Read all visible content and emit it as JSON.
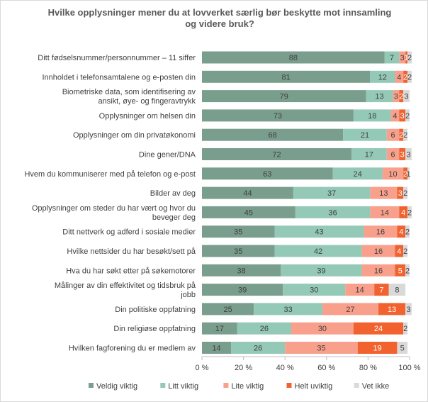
{
  "chart_data": {
    "type": "bar",
    "orientation": "horizontal",
    "stacked": true,
    "title": "Hvilke opplysninger mener du at lovverket særlig bør beskytte mot innsamling og videre bruk?",
    "categories": [
      "Ditt fødselsnummer/personnummer – 11 siffer",
      "Innholdet i telefonsamtalene og e-posten din",
      "Biometriske data, som identifisering av ansikt, øye- og fingeravtrykk",
      "Opplysninger om helsen din",
      "Opplysninger om din privatøkonomi",
      "Dine gener/DNA",
      "Hvem du kommuniserer med på telefon og e-post",
      "Bilder av deg",
      "Opplysninger om steder du har vært og hvor du beveger deg",
      "Ditt nettverk og adferd i sosiale medier",
      "Hvilke nettsider du har besøkt/sett på",
      "Hva du har søkt etter på søkemotorer",
      "Målinger av din effektivitet og tidsbruk på jobb",
      "Din politiske oppfatning",
      "Din religiøse oppfatning",
      "Hvilken fagforening du er medlem av"
    ],
    "series": [
      {
        "name": "Veldig viktig",
        "color": "#7a9e8e",
        "label_color": "#404040",
        "values": [
          88,
          81,
          79,
          73,
          68,
          72,
          63,
          44,
          45,
          35,
          35,
          38,
          39,
          25,
          17,
          14
        ]
      },
      {
        "name": "Litt viktig",
        "color": "#94c9b8",
        "label_color": "#404040",
        "values": [
          7,
          12,
          13,
          18,
          21,
          17,
          24,
          37,
          36,
          43,
          42,
          39,
          30,
          33,
          26,
          26
        ]
      },
      {
        "name": "Lite viktig",
        "color": "#f8a08b",
        "label_color": "#404040",
        "values": [
          3,
          4,
          3,
          4,
          6,
          6,
          10,
          13,
          14,
          16,
          16,
          16,
          14,
          27,
          30,
          35
        ]
      },
      {
        "name": "Helt uviktig",
        "color": "#f2622e",
        "label_color": "#ffffff",
        "values": [
          1,
          2,
          2,
          3,
          2,
          3,
          2,
          3,
          4,
          4,
          4,
          5,
          7,
          13,
          24,
          19
        ]
      },
      {
        "name": "Vet ikke",
        "color": "#d9d9d9",
        "label_color": "#404040",
        "values": [
          2,
          2,
          3,
          2,
          2,
          3,
          1,
          2,
          2,
          2,
          2,
          2,
          8,
          3,
          2,
          5
        ]
      }
    ],
    "xlim": [
      0,
      100
    ],
    "xticks": [
      "0 %",
      "20 %",
      "40 %",
      "60 %",
      "80 %",
      "100 %"
    ],
    "legend_position": "bottom",
    "grid": false
  }
}
